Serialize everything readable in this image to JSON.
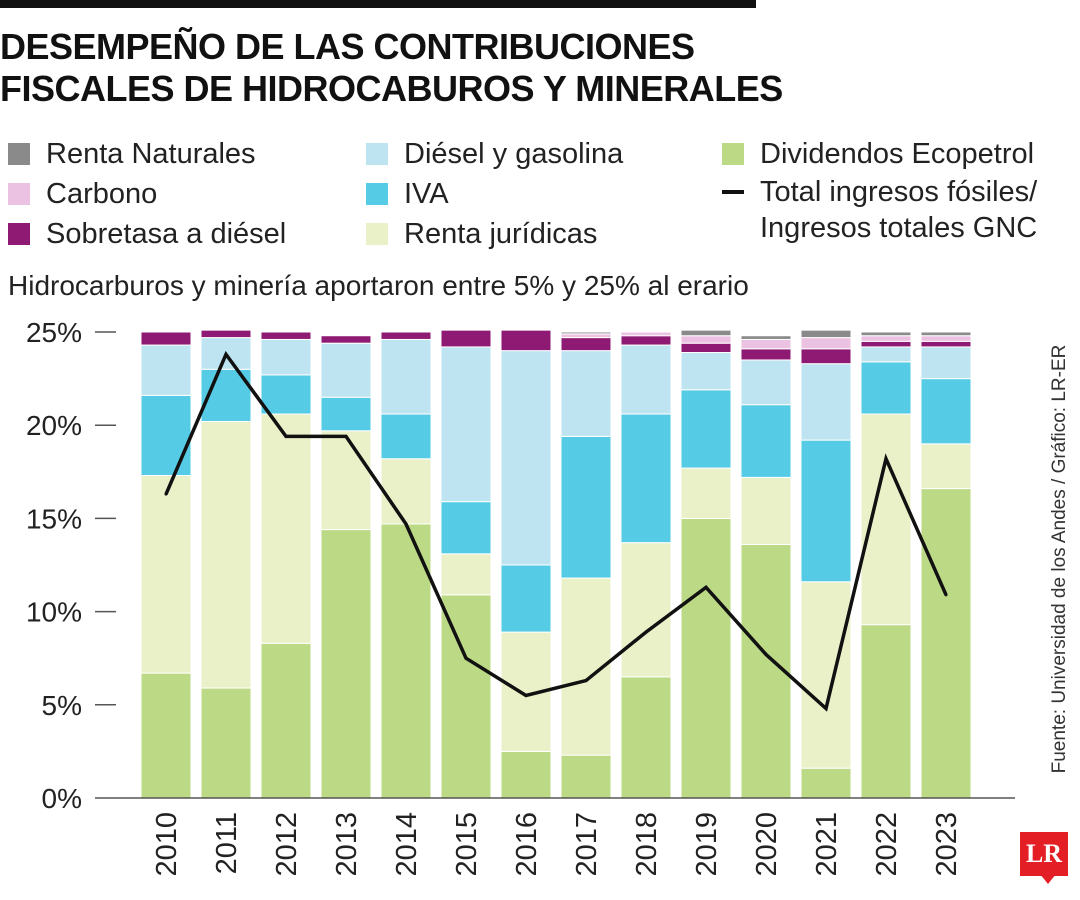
{
  "header": {
    "title_line1": "DESEMPEÑO DE LAS CONTRIBUCIONES",
    "title_line2": "FISCALES DE HIDROCABUROS Y MINERALES",
    "subtitle": "Hidrocarburos y minería aportaron entre 5% y 25% al erario"
  },
  "legend": {
    "items": [
      {
        "label": "Renta Naturales",
        "color": "#8a8a8a"
      },
      {
        "label": "Carbono",
        "color": "#ebc2e2"
      },
      {
        "label": "Sobretasa a diésel",
        "color": "#8e1a73"
      },
      {
        "label": "Diésel y gasolina",
        "color": "#bfe4f1"
      },
      {
        "label": "IVA",
        "color": "#56cbe5"
      },
      {
        "label": "Renta jurídicas",
        "color": "#eaf0c8"
      },
      {
        "label": "Dividendos Ecopetrol",
        "color": "#bcd986"
      },
      {
        "label": "Total ingresos fósiles/ Ingresos totales GNC",
        "color": "#111111"
      }
    ]
  },
  "source": "Fuente: Universidad de los Andes / Gráfico: LR-ER",
  "logo": "LR",
  "chart_data": {
    "type": "bar",
    "stacked": true,
    "categories": [
      "2010",
      "2011",
      "2012",
      "2013",
      "2014",
      "2015",
      "2016",
      "2017",
      "2018",
      "2019",
      "2020",
      "2021",
      "2022",
      "2023"
    ],
    "ylim": [
      0,
      25
    ],
    "yticks": [
      "0%",
      "5%",
      "10%",
      "15%",
      "20%",
      "25%"
    ],
    "series": [
      {
        "name": "Dividendos Ecopetrol",
        "color": "#bcd986",
        "values": [
          6.7,
          5.9,
          8.3,
          14.4,
          14.7,
          10.9,
          2.5,
          2.3,
          6.5,
          15.0,
          13.6,
          1.6,
          9.3,
          16.6
        ]
      },
      {
        "name": "Renta jurídicas",
        "color": "#eaf0c8",
        "values": [
          10.6,
          14.3,
          12.3,
          5.3,
          3.5,
          2.2,
          6.4,
          9.5,
          7.2,
          2.7,
          3.6,
          10.0,
          11.3,
          2.4
        ]
      },
      {
        "name": "IVA",
        "color": "#56cbe5",
        "values": [
          4.3,
          2.8,
          2.1,
          1.8,
          2.4,
          2.8,
          3.6,
          7.6,
          6.9,
          4.2,
          3.9,
          7.6,
          2.8,
          3.5
        ]
      },
      {
        "name": "Diésel y gasolina",
        "color": "#bfe4f1",
        "values": [
          2.7,
          1.7,
          1.9,
          2.9,
          4.0,
          8.3,
          11.5,
          4.6,
          3.7,
          2.0,
          2.4,
          4.1,
          0.8,
          1.7
        ]
      },
      {
        "name": "Sobretasa a diésel",
        "color": "#8e1a73",
        "values": [
          0.7,
          0.4,
          0.4,
          0.4,
          0.4,
          0.9,
          1.1,
          0.7,
          0.5,
          0.5,
          0.6,
          0.8,
          0.3,
          0.3
        ]
      },
      {
        "name": "Carbono",
        "color": "#ebc2e2",
        "values": [
          0,
          0,
          0,
          0,
          0,
          0,
          0,
          0.2,
          0.2,
          0.4,
          0.5,
          0.6,
          0.3,
          0.3
        ]
      },
      {
        "name": "Renta Naturales",
        "color": "#8a8a8a",
        "values": [
          0,
          0,
          0,
          0,
          0,
          0,
          0,
          0.1,
          0,
          0.3,
          0.2,
          0.4,
          0.2,
          0.2
        ]
      }
    ],
    "line": {
      "name": "Total ingresos fósiles/ Ingresos totales GNC",
      "color": "#111111",
      "values": [
        16.3,
        23.8,
        19.4,
        19.4,
        14.7,
        7.5,
        5.5,
        6.3,
        8.9,
        11.3,
        7.7,
        4.8,
        18.2,
        10.9
      ]
    }
  }
}
